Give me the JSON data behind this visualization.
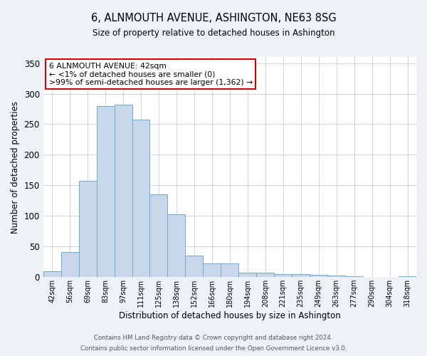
{
  "title": "6, ALNMOUTH AVENUE, ASHINGTON, NE63 8SG",
  "subtitle": "Size of property relative to detached houses in Ashington",
  "xlabel": "Distribution of detached houses by size in Ashington",
  "ylabel": "Number of detached properties",
  "bar_labels": [
    "42sqm",
    "56sqm",
    "69sqm",
    "83sqm",
    "97sqm",
    "111sqm",
    "125sqm",
    "138sqm",
    "152sqm",
    "166sqm",
    "180sqm",
    "194sqm",
    "208sqm",
    "221sqm",
    "235sqm",
    "249sqm",
    "263sqm",
    "277sqm",
    "290sqm",
    "304sqm",
    "318sqm"
  ],
  "bar_values": [
    10,
    41,
    157,
    280,
    282,
    258,
    135,
    103,
    35,
    22,
    22,
    7,
    7,
    5,
    5,
    4,
    2,
    1,
    0,
    0,
    1
  ],
  "bar_color": "#c8d8ea",
  "bar_edgecolor": "#6aaad4",
  "ylim": [
    0,
    360
  ],
  "yticks": [
    0,
    50,
    100,
    150,
    200,
    250,
    300,
    350
  ],
  "annotation_box_text": "6 ALNMOUTH AVENUE: 42sqm\n← <1% of detached houses are smaller (0)\n>99% of semi-detached houses are larger (1,362) →",
  "annotation_box_color": "#cc0000",
  "annotation_box_facecolor": "#ffffff",
  "footer_line1": "Contains HM Land Registry data © Crown copyright and database right 2024.",
  "footer_line2": "Contains public sector information licensed under the Open Government Licence v3.0.",
  "background_color": "#eef2f7",
  "plot_background": "#ffffff",
  "grid_color": "#c8d0da"
}
